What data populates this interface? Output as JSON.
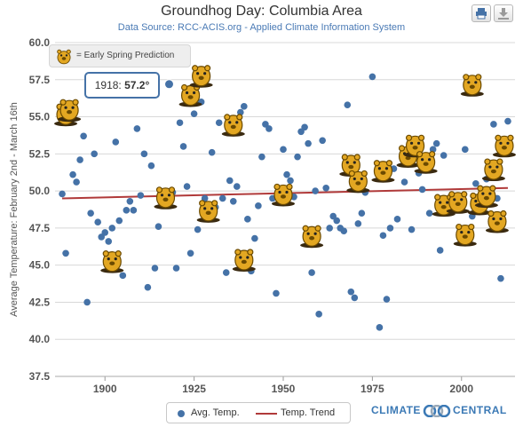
{
  "chart_data": {
    "type": "scatter",
    "title": "Groundhog Day: Columbia Area",
    "subtitle": "Data Source: RCC-ACIS.org - Applied Climate Information System",
    "ylabel": "Average Temperature: February 2nd - March 16th",
    "xlabel": "",
    "xlim": [
      1886,
      2015
    ],
    "ylim": [
      37.5,
      60.0
    ],
    "x_ticks": [
      1900,
      1925,
      1950,
      1975,
      2000
    ],
    "y_ticks": [
      37.5,
      40.0,
      42.5,
      45.0,
      47.5,
      50.0,
      52.5,
      55.0,
      57.5,
      60.0
    ],
    "y_tick_labels": [
      "37.5",
      "40.0",
      "42.5",
      "45.0",
      "47.5",
      "50.0",
      "52.5",
      "55.0",
      "57.5",
      "60.0"
    ],
    "grid": true,
    "legend": {
      "position": "bottom-center",
      "items": [
        "Avg. Temp.",
        "Temp. Trend"
      ]
    },
    "series": [
      {
        "name": "Avg. Temp.",
        "color": "#4572a7",
        "points": [
          [
            1888,
            49.8
          ],
          [
            1889,
            45.8
          ],
          [
            1891,
            51.1
          ],
          [
            1892,
            50.6
          ],
          [
            1893,
            52.1
          ],
          [
            1894,
            53.7
          ],
          [
            1895,
            42.5
          ],
          [
            1896,
            48.5
          ],
          [
            1897,
            52.5
          ],
          [
            1898,
            47.9
          ],
          [
            1899,
            46.9
          ],
          [
            1900,
            47.2
          ],
          [
            1901,
            46.6
          ],
          [
            1902,
            47.5
          ],
          [
            1903,
            53.3
          ],
          [
            1904,
            48.0
          ],
          [
            1905,
            44.3
          ],
          [
            1906,
            48.7
          ],
          [
            1907,
            49.3
          ],
          [
            1908,
            48.7
          ],
          [
            1909,
            54.2
          ],
          [
            1910,
            49.7
          ],
          [
            1911,
            52.5
          ],
          [
            1912,
            43.5
          ],
          [
            1913,
            51.7
          ],
          [
            1914,
            44.8
          ],
          [
            1915,
            47.6
          ],
          [
            1916,
            49.5
          ],
          [
            1917,
            49.6
          ],
          [
            1919,
            49.9
          ],
          [
            1920,
            44.8
          ],
          [
            1921,
            54.6
          ],
          [
            1922,
            53.0
          ],
          [
            1923,
            50.3
          ],
          [
            1924,
            45.8
          ],
          [
            1925,
            55.2
          ],
          [
            1926,
            47.4
          ],
          [
            1927,
            56.0
          ],
          [
            1928,
            49.5
          ],
          [
            1929,
            48.8
          ],
          [
            1930,
            52.6
          ],
          [
            1931,
            48.9
          ],
          [
            1932,
            54.6
          ],
          [
            1933,
            49.5
          ],
          [
            1934,
            44.5
          ],
          [
            1935,
            50.7
          ],
          [
            1936,
            49.3
          ],
          [
            1937,
            50.3
          ],
          [
            1938,
            55.3
          ],
          [
            1939,
            55.7
          ],
          [
            1940,
            48.1
          ],
          [
            1941,
            44.6
          ],
          [
            1942,
            46.8
          ],
          [
            1943,
            49.0
          ],
          [
            1944,
            52.3
          ],
          [
            1945,
            54.5
          ],
          [
            1946,
            54.2
          ],
          [
            1947,
            49.5
          ],
          [
            1948,
            43.1
          ],
          [
            1949,
            49.3
          ],
          [
            1950,
            52.8
          ],
          [
            1951,
            51.1
          ],
          [
            1952,
            50.7
          ],
          [
            1953,
            49.6
          ],
          [
            1954,
            52.3
          ],
          [
            1955,
            54.0
          ],
          [
            1956,
            54.3
          ],
          [
            1957,
            53.2
          ],
          [
            1958,
            44.5
          ],
          [
            1959,
            50.0
          ],
          [
            1960,
            41.7
          ],
          [
            1961,
            53.4
          ],
          [
            1962,
            50.2
          ],
          [
            1963,
            47.5
          ],
          [
            1964,
            48.3
          ],
          [
            1965,
            48.0
          ],
          [
            1966,
            47.5
          ],
          [
            1967,
            47.3
          ],
          [
            1968,
            55.8
          ],
          [
            1969,
            43.2
          ],
          [
            1970,
            42.8
          ],
          [
            1971,
            47.8
          ],
          [
            1972,
            48.5
          ],
          [
            1973,
            49.9
          ],
          [
            1975,
            57.7
          ],
          [
            1977,
            40.8
          ],
          [
            1978,
            47.0
          ],
          [
            1979,
            42.7
          ],
          [
            1980,
            47.5
          ],
          [
            1981,
            51.5
          ],
          [
            1982,
            48.1
          ],
          [
            1984,
            50.6
          ],
          [
            1986,
            47.4
          ],
          [
            1988,
            51.2
          ],
          [
            1989,
            50.1
          ],
          [
            1991,
            48.5
          ],
          [
            1992,
            52.8
          ],
          [
            1993,
            53.2
          ],
          [
            1994,
            46.0
          ],
          [
            1995,
            52.4
          ],
          [
            1997,
            49.2
          ],
          [
            1999,
            49.7
          ],
          [
            2001,
            52.8
          ],
          [
            2003,
            48.3
          ],
          [
            2004,
            50.5
          ],
          [
            2005,
            48.8
          ],
          [
            2006,
            49.0
          ],
          [
            2007,
            50.8
          ],
          [
            2009,
            54.5
          ],
          [
            2010,
            49.5
          ],
          [
            2011,
            44.1
          ],
          [
            2013,
            54.7
          ]
        ]
      },
      {
        "name": "Temp. Trend",
        "type": "line",
        "color": "#b03a3a",
        "points": [
          [
            1888,
            49.5
          ],
          [
            2013,
            50.2
          ]
        ]
      }
    ],
    "early_spring_predictions": [
      [
        1889,
        55.2
      ],
      [
        1890,
        55.5
      ],
      [
        1902,
        45.3
      ],
      [
        1917,
        49.6
      ],
      [
        1924,
        56.5
      ],
      [
        1927,
        57.8
      ],
      [
        1929,
        48.7
      ],
      [
        1936,
        54.5
      ],
      [
        1939,
        45.4
      ],
      [
        1950,
        49.8
      ],
      [
        1958,
        47.0
      ],
      [
        1969,
        51.8
      ],
      [
        1971,
        50.7
      ],
      [
        1978,
        51.4
      ],
      [
        1985,
        52.4
      ],
      [
        1987,
        53.1
      ],
      [
        1990,
        52.0
      ],
      [
        1995,
        49.1
      ],
      [
        1999,
        49.3
      ],
      [
        2001,
        47.1
      ],
      [
        2003,
        57.2
      ],
      [
        2005,
        49.2
      ],
      [
        2007,
        49.7
      ],
      [
        2009,
        51.5
      ],
      [
        2010,
        48.0
      ],
      [
        2012,
        53.1
      ]
    ],
    "tooltip": {
      "year": "1918:",
      "value": "57.2°",
      "x": 1918,
      "y": 57.2
    }
  },
  "legend_prediction_label": "= Early Spring Prediction",
  "brand": {
    "left": "CLIMATE",
    "right": "CENTRAL"
  },
  "colors": {
    "accent": "#4572a7",
    "trend": "#b03a3a",
    "groundhog": "#e3a722"
  }
}
